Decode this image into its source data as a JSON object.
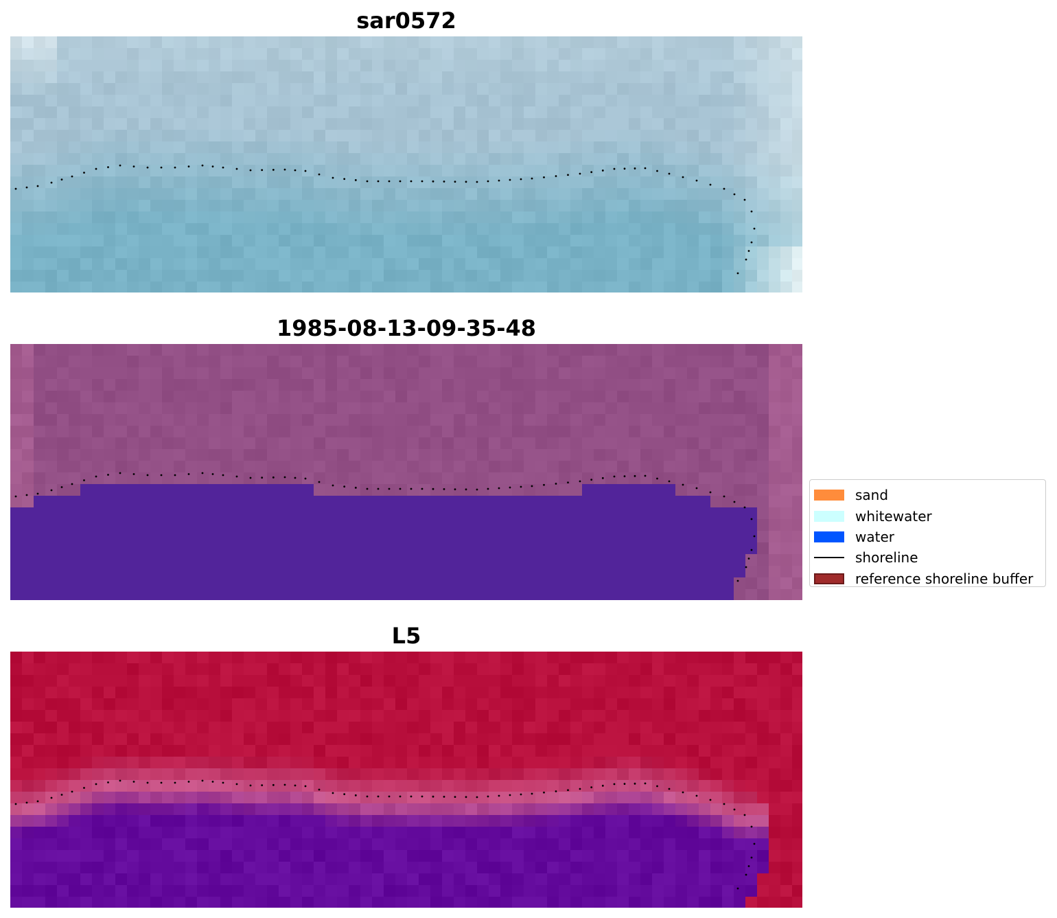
{
  "panels": [
    {
      "title": "sar0572",
      "style": "sar"
    },
    {
      "title": "1985-08-13-09-35-48",
      "style": "classified"
    },
    {
      "title": "L5",
      "style": "index"
    }
  ],
  "legend": {
    "items": [
      {
        "label": "sand",
        "color": "#ff8c3b",
        "kind": "patch"
      },
      {
        "label": "whitewater",
        "color": "#ccffff",
        "kind": "patch"
      },
      {
        "label": "water",
        "color": "#0055ff",
        "kind": "patch"
      },
      {
        "label": "shoreline",
        "color": "#000000",
        "kind": "line"
      },
      {
        "label": "reference shoreline buffer",
        "color": "#a02b2b",
        "kind": "patch"
      }
    ]
  },
  "colors": {
    "sar_water": "#79b2c6",
    "sar_land": "#a7c3d3",
    "sar_bright": "#f4fbfb",
    "classified_land": "#924f85",
    "classified_edge": "#b56899",
    "classified_water": "#52249a",
    "index_land": "#b80f3c",
    "index_transition": "#c95a8e",
    "index_water": "#630a9c",
    "shoreline_dots": "#000000"
  }
}
